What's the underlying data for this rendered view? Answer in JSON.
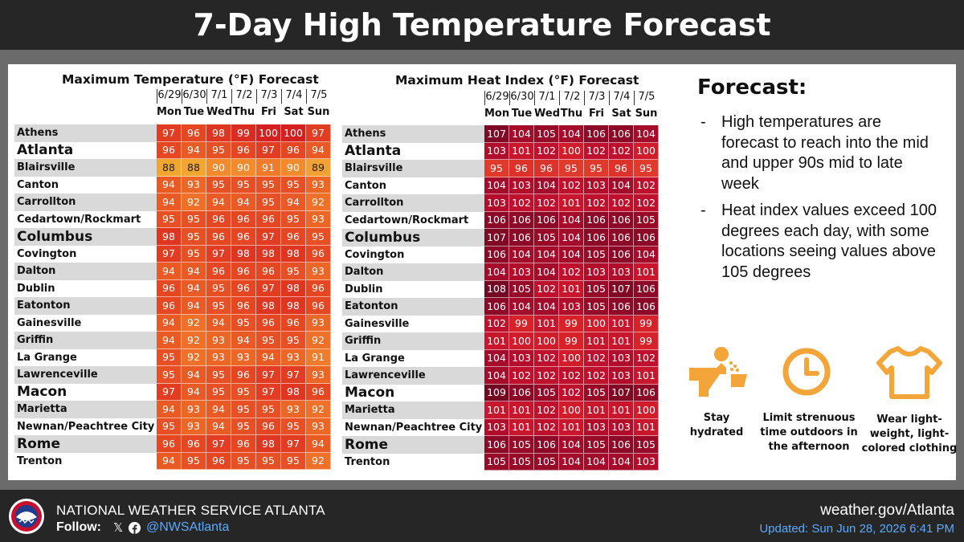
{
  "title": "7-Day High Temperature Forecast",
  "max_temp": {
    "title": "Maximum Temperature (°F) Forecast",
    "dates": [
      "6/29",
      "6/30",
      "7/1",
      "7/2",
      "7/3",
      "7/4",
      "7/5"
    ],
    "days": [
      "Mon",
      "Tue",
      "Wed",
      "Thu",
      "Fri",
      "Sat",
      "Sun"
    ]
  },
  "heat_index": {
    "title": "Maximum Heat Index (°F) Forecast",
    "dates": [
      "6/29",
      "6/30",
      "7/1",
      "7/2",
      "7/3",
      "7/4",
      "7/5"
    ],
    "days": [
      "Mon",
      "Tue",
      "Wed",
      "Thu",
      "Fri",
      "Sat",
      "Sun"
    ]
  },
  "cities": [
    {
      "name": "Athens",
      "big": false,
      "temps": [
        97,
        96,
        98,
        99,
        100,
        100,
        97
      ],
      "heat": [
        107,
        104,
        105,
        104,
        106,
        106,
        104
      ]
    },
    {
      "name": "Atlanta",
      "big": true,
      "temps": [
        96,
        94,
        95,
        96,
        97,
        96,
        94
      ],
      "heat": [
        103,
        101,
        102,
        100,
        102,
        102,
        100
      ]
    },
    {
      "name": "Blairsville",
      "big": false,
      "temps": [
        88,
        88,
        90,
        90,
        91,
        90,
        89
      ],
      "heat": [
        95,
        96,
        96,
        95,
        95,
        96,
        95
      ]
    },
    {
      "name": "Canton",
      "big": false,
      "temps": [
        94,
        93,
        95,
        95,
        95,
        95,
        93
      ],
      "heat": [
        104,
        103,
        104,
        102,
        103,
        104,
        102
      ]
    },
    {
      "name": "Carrollton",
      "big": false,
      "temps": [
        94,
        92,
        94,
        94,
        95,
        94,
        92
      ],
      "heat": [
        103,
        102,
        102,
        101,
        102,
        102,
        102
      ]
    },
    {
      "name": "Cedartown/Rockmart",
      "big": false,
      "temps": [
        95,
        95,
        96,
        96,
        96,
        95,
        93
      ],
      "heat": [
        106,
        106,
        106,
        104,
        106,
        106,
        105
      ]
    },
    {
      "name": "Columbus",
      "big": true,
      "temps": [
        98,
        95,
        96,
        96,
        97,
        96,
        95
      ],
      "heat": [
        107,
        106,
        105,
        104,
        106,
        106,
        106
      ]
    },
    {
      "name": "Covington",
      "big": false,
      "temps": [
        97,
        95,
        97,
        98,
        98,
        98,
        96
      ],
      "heat": [
        106,
        104,
        104,
        104,
        105,
        106,
        104
      ]
    },
    {
      "name": "Dalton",
      "big": false,
      "temps": [
        94,
        94,
        96,
        96,
        96,
        95,
        93
      ],
      "heat": [
        104,
        103,
        104,
        102,
        103,
        103,
        101
      ]
    },
    {
      "name": "Dublin",
      "big": false,
      "temps": [
        96,
        94,
        95,
        96,
        97,
        98,
        96
      ],
      "heat": [
        108,
        105,
        102,
        101,
        105,
        107,
        106
      ]
    },
    {
      "name": "Eatonton",
      "big": false,
      "temps": [
        96,
        94,
        95,
        96,
        98,
        98,
        96
      ],
      "heat": [
        106,
        104,
        104,
        103,
        105,
        106,
        106
      ]
    },
    {
      "name": "Gainesville",
      "big": false,
      "temps": [
        94,
        92,
        94,
        95,
        96,
        96,
        93
      ],
      "heat": [
        102,
        99,
        101,
        99,
        100,
        101,
        99
      ]
    },
    {
      "name": "Griffin",
      "big": false,
      "temps": [
        94,
        92,
        93,
        94,
        95,
        95,
        92
      ],
      "heat": [
        101,
        100,
        100,
        99,
        101,
        101,
        99
      ]
    },
    {
      "name": "La Grange",
      "big": false,
      "temps": [
        95,
        92,
        93,
        93,
        94,
        93,
        91
      ],
      "heat": [
        104,
        103,
        102,
        100,
        102,
        103,
        102
      ]
    },
    {
      "name": "Lawrenceville",
      "big": false,
      "temps": [
        95,
        94,
        95,
        96,
        97,
        97,
        93
      ],
      "heat": [
        104,
        102,
        102,
        102,
        102,
        103,
        101
      ]
    },
    {
      "name": "Macon",
      "big": true,
      "temps": [
        97,
        94,
        95,
        95,
        97,
        98,
        96
      ],
      "heat": [
        109,
        106,
        105,
        102,
        105,
        107,
        106
      ]
    },
    {
      "name": "Marietta",
      "big": false,
      "temps": [
        94,
        93,
        94,
        95,
        95,
        93,
        92
      ],
      "heat": [
        101,
        101,
        102,
        100,
        101,
        101,
        100
      ]
    },
    {
      "name": "Newnan/Peachtree City",
      "big": false,
      "temps": [
        95,
        93,
        94,
        95,
        96,
        95,
        93
      ],
      "heat": [
        103,
        101,
        102,
        101,
        103,
        103,
        101
      ]
    },
    {
      "name": "Rome",
      "big": true,
      "temps": [
        96,
        96,
        97,
        96,
        98,
        97,
        94
      ],
      "heat": [
        106,
        105,
        106,
        104,
        105,
        106,
        105
      ]
    },
    {
      "name": "Trenton",
      "big": false,
      "temps": [
        94,
        95,
        96,
        95,
        95,
        95,
        92
      ],
      "heat": [
        105,
        105,
        105,
        104,
        104,
        104,
        103
      ]
    }
  ],
  "forecast": {
    "title": "Forecast:",
    "bullets": [
      "High temperatures are forecast to reach into the mid and upper 90s mid to late week",
      "Heat index values exceed 100 degrees each day, with some locations seeing values above 105 degrees"
    ],
    "dash": "-"
  },
  "tips": [
    {
      "icon": "water-fountain-icon",
      "label": "Stay hydrated"
    },
    {
      "icon": "clock-icon",
      "label": "Limit strenuous time outdoors in the afternoon"
    },
    {
      "icon": "tshirt-icon",
      "label": "Wear light-weight, light-colored clothing"
    }
  ],
  "footer": {
    "org": "NATIONAL WEATHER SERVICE ATLANTA",
    "follow_label": "Follow:",
    "x_glyph": "𝕏",
    "handle": "@NWSAtlanta",
    "site": "weather.gov/Atlanta",
    "updated": "Updated: Sun Jun 28, 2026 6:41 PM"
  },
  "colors": {
    "tip_orange": "#f4a53a",
    "handle_blue": "#5aa9ff",
    "heat_deep": "#8b0a1f",
    "heat_mid": "#c8102e",
    "temp_hot": "#e53a22",
    "temp_warm": "#f28a2e",
    "temp_mild": "#f4b342"
  }
}
